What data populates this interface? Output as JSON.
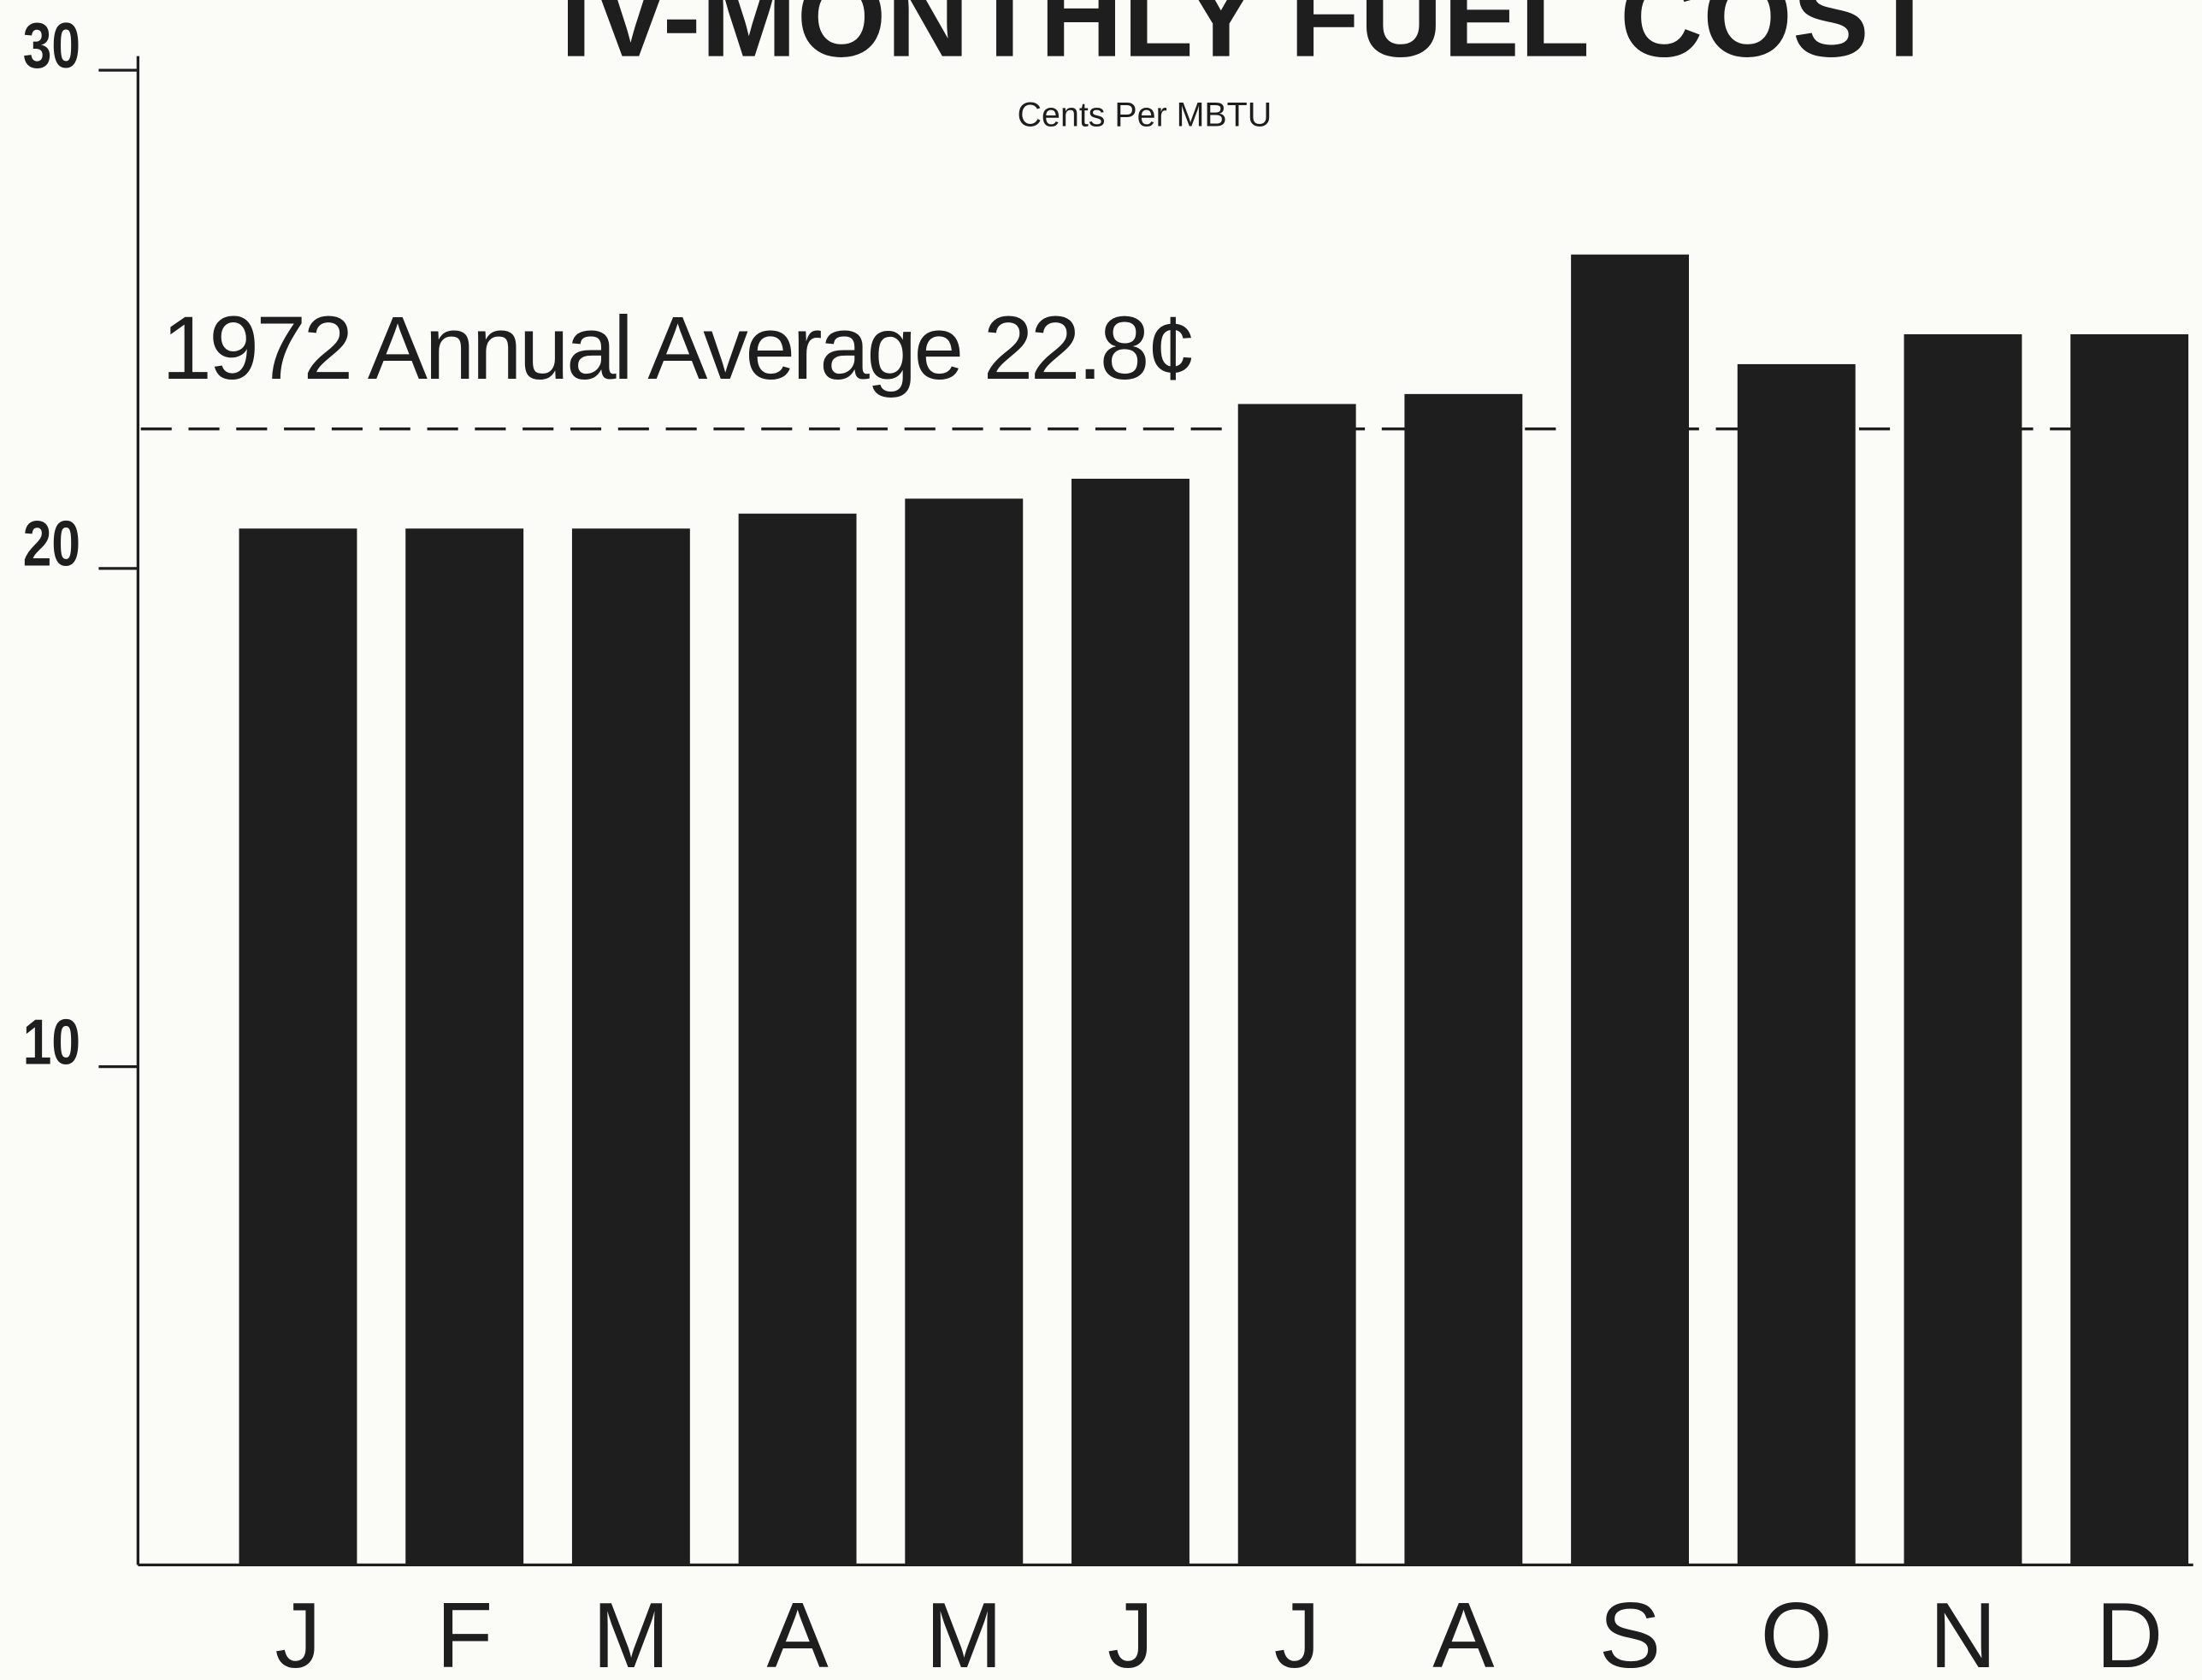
{
  "chart_data": {
    "type": "bar",
    "title": "IV-MONTHLY FUEL COST",
    "subtitle": "Cents Per MBTU",
    "categories": [
      "J",
      "F",
      "M",
      "A",
      "M",
      "J",
      "J",
      "A",
      "S",
      "O",
      "N",
      "D"
    ],
    "values": [
      20.8,
      20.8,
      20.8,
      21.1,
      21.4,
      21.8,
      23.3,
      23.5,
      26.3,
      24.1,
      24.7,
      24.7
    ],
    "color": "#1e1e1e",
    "ylim": [
      0,
      30
    ],
    "yticks": [
      10,
      20,
      30
    ],
    "grid": false,
    "reference_line": {
      "value": 22.8,
      "label": "1972 Annual Average 22.8¢"
    }
  }
}
